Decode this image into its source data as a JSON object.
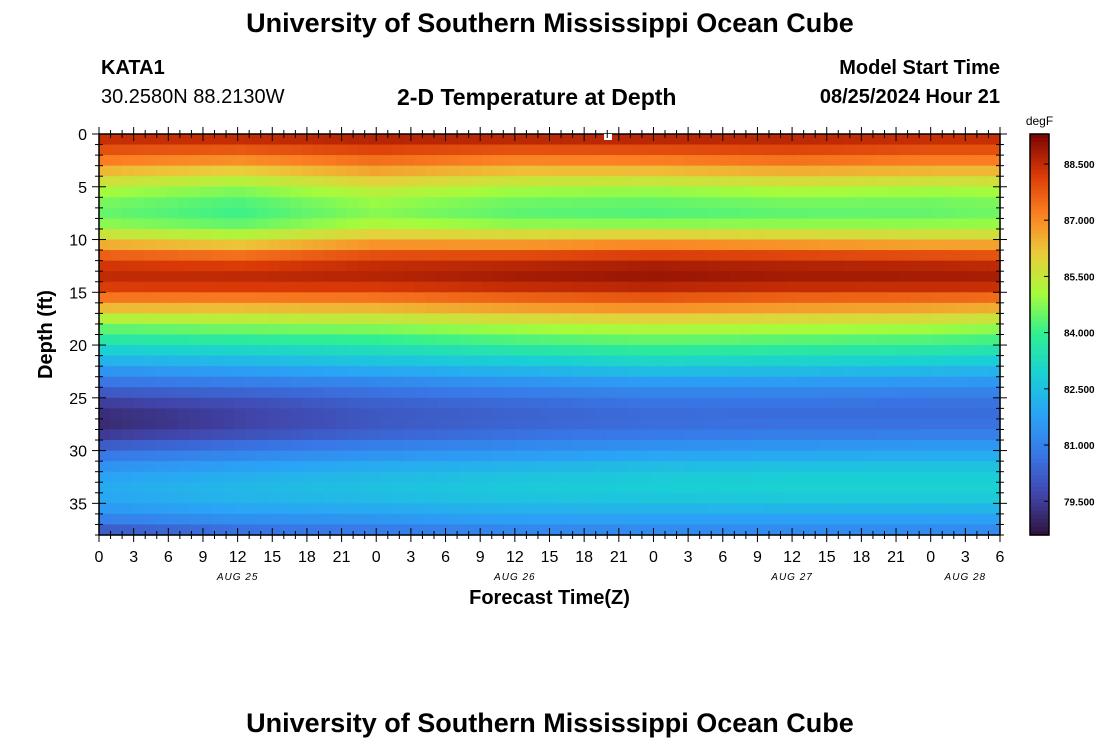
{
  "header": {
    "title": "University of Southern Mississippi Ocean Cube",
    "station_id": "KATA1",
    "station_coords": "30.2580N  88.2130W",
    "chart_title": "2-D Temperature at Depth",
    "model_start_label": "Model Start Time",
    "model_start_value": "08/25/2024 Hour 21"
  },
  "footer": {
    "title": "University of Southern Mississippi Ocean Cube"
  },
  "chart_data": {
    "type": "heatmap",
    "title": "2-D Temperature at Depth",
    "xlabel": "Forecast Time(Z)",
    "ylabel": "Depth (ft)",
    "x_tick_labels": [
      "0",
      "3",
      "6",
      "9",
      "12",
      "15",
      "18",
      "21",
      "0",
      "3",
      "6",
      "9",
      "12",
      "15",
      "18",
      "21",
      "0",
      "3",
      "6",
      "9",
      "12",
      "15",
      "18",
      "21",
      "0",
      "3",
      "6"
    ],
    "x_date_labels": [
      {
        "label": "AUG 25",
        "at_tick": 4
      },
      {
        "label": "AUG 26",
        "at_tick": 12
      },
      {
        "label": "AUG 27",
        "at_tick": 20
      },
      {
        "label": "AUG 28",
        "at_tick": 25
      }
    ],
    "y_ticks": [
      0,
      5,
      10,
      15,
      20,
      25,
      30,
      35
    ],
    "ylim": [
      0,
      38
    ],
    "y_inverted": true,
    "colorbar": {
      "unit": "degF",
      "ticks": [
        "88.500",
        "87.000",
        "85.500",
        "84.000",
        "82.500",
        "81.000",
        "79.500"
      ],
      "tick_values": [
        88.5,
        87.0,
        85.5,
        84.0,
        82.5,
        81.0,
        79.5
      ],
      "range": [
        78.6,
        89.3
      ],
      "colormap": "turbo"
    },
    "time_hours": [
      0,
      12,
      24,
      36,
      48,
      60,
      72,
      78
    ],
    "depth_ft": [
      0,
      2,
      4,
      6,
      8,
      10,
      12,
      14,
      16,
      18,
      20,
      22,
      24,
      26,
      28,
      30,
      32,
      34,
      36,
      38
    ],
    "values": [
      [
        88.7,
        88.8,
        88.9,
        88.9,
        88.9,
        88.8,
        88.7,
        88.7
      ],
      [
        87.6,
        87.4,
        87.8,
        87.5,
        87.6,
        87.8,
        87.6,
        87.6
      ],
      [
        86.0,
        85.6,
        86.3,
        85.9,
        85.9,
        86.1,
        86.0,
        86.0
      ],
      [
        84.7,
        84.3,
        85.0,
        84.6,
        84.5,
        84.7,
        84.6,
        84.7
      ],
      [
        84.4,
        84.0,
        84.7,
        84.3,
        84.2,
        84.3,
        84.4,
        84.5
      ],
      [
        86.0,
        85.6,
        86.4,
        86.3,
        86.5,
        86.3,
        86.1,
        86.1
      ],
      [
        88.2,
        88.0,
        88.4,
        88.5,
        88.7,
        88.6,
        88.5,
        88.4
      ],
      [
        88.6,
        88.7,
        88.7,
        88.9,
        89.0,
        88.9,
        88.9,
        88.9
      ],
      [
        86.9,
        86.8,
        86.9,
        87.2,
        87.4,
        87.2,
        87.1,
        87.0
      ],
      [
        84.7,
        84.9,
        85.0,
        85.3,
        85.5,
        85.4,
        85.3,
        85.1
      ],
      [
        83.3,
        83.4,
        83.6,
        83.9,
        84.1,
        84.0,
        83.9,
        83.8
      ],
      [
        81.8,
        82.0,
        82.3,
        82.5,
        82.8,
        82.7,
        82.6,
        82.5
      ],
      [
        80.4,
        80.6,
        80.8,
        81.1,
        81.3,
        81.3,
        81.2,
        81.2
      ],
      [
        79.2,
        79.6,
        80.1,
        80.3,
        80.5,
        80.5,
        80.5,
        80.5
      ],
      [
        79.1,
        79.6,
        80.1,
        80.4,
        80.6,
        80.7,
        80.7,
        80.7
      ],
      [
        80.5,
        80.9,
        81.2,
        81.4,
        81.6,
        81.7,
        81.8,
        81.8
      ],
      [
        81.7,
        82.0,
        82.3,
        82.5,
        82.7,
        82.8,
        82.8,
        82.8
      ],
      [
        82.1,
        82.4,
        82.6,
        82.8,
        82.9,
        83.0,
        83.0,
        83.0
      ],
      [
        81.4,
        81.7,
        81.8,
        82.0,
        82.0,
        82.0,
        82.0,
        82.0
      ],
      [
        79.8,
        80.3,
        80.6,
        80.9,
        81.0,
        81.0,
        81.0,
        81.0
      ]
    ],
    "grid": false
  }
}
